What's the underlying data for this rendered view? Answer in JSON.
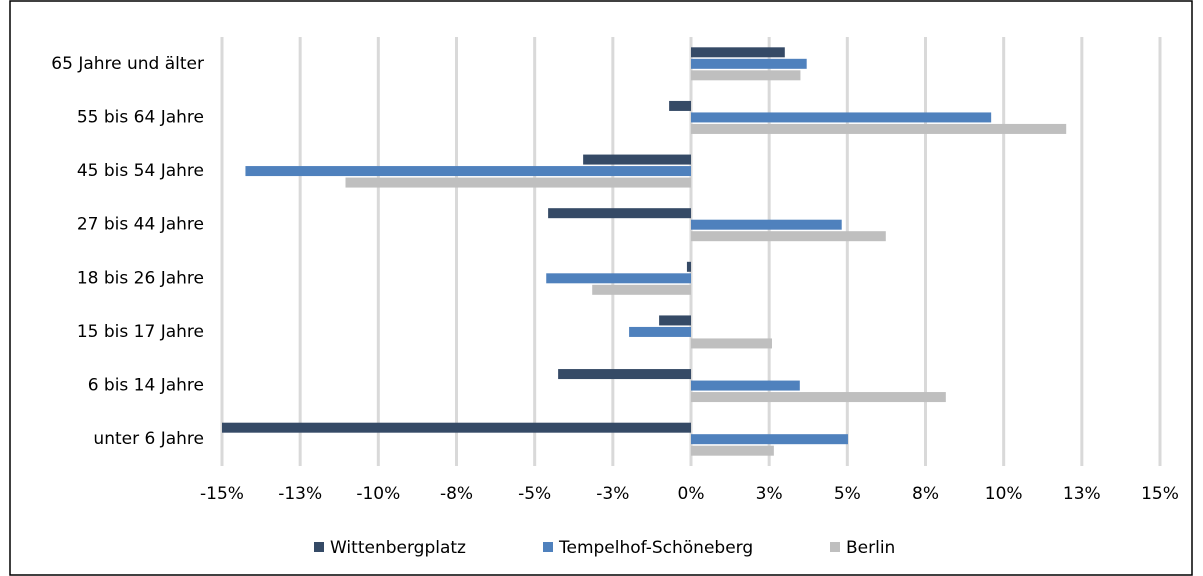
{
  "chart_data": {
    "type": "hbar",
    "categories": [
      "65 Jahre und älter",
      "55 bis 64 Jahre",
      "45 bis 54 Jahre",
      "27 bis 44 Jahre",
      "18 bis 26 Jahre",
      "15 bis 17 Jahre",
      "6 bis 14 Jahre",
      "unter 6 Jahre"
    ],
    "series": [
      {
        "name": "Wittenbergplatz",
        "color": "#354a66",
        "values": [
          3.0,
          -0.7,
          -3.45,
          -4.57,
          -0.13,
          -1.02,
          -4.25,
          -15.0
        ]
      },
      {
        "name": "Tempelhof-Schöneberg",
        "color": "#4f81bd",
        "values": [
          3.7,
          9.6,
          -14.25,
          4.82,
          -4.63,
          -1.98,
          3.48,
          5.02
        ]
      },
      {
        "name": "Berlin",
        "color": "#bfbfbf",
        "values": [
          3.5,
          12.0,
          -11.05,
          6.23,
          -3.16,
          2.59,
          8.15,
          2.65
        ]
      }
    ],
    "xlim": [
      -15,
      15
    ],
    "xticks": [
      {
        "value": -15,
        "label": "-15%"
      },
      {
        "value": -12.5,
        "label": "-13%"
      },
      {
        "value": -10,
        "label": "-10%"
      },
      {
        "value": -7.5,
        "label": "-8%"
      },
      {
        "value": -5,
        "label": "-5%"
      },
      {
        "value": -2.5,
        "label": "-3%"
      },
      {
        "value": 0,
        "label": "0%"
      },
      {
        "value": 2.5,
        "label": "3%"
      },
      {
        "value": 5,
        "label": "5%"
      },
      {
        "value": 7.5,
        "label": "8%"
      },
      {
        "value": 10,
        "label": "10%"
      },
      {
        "value": 12.5,
        "label": "13%"
      },
      {
        "value": 15,
        "label": "15%"
      }
    ],
    "grid": true,
    "legend": "bottom"
  }
}
